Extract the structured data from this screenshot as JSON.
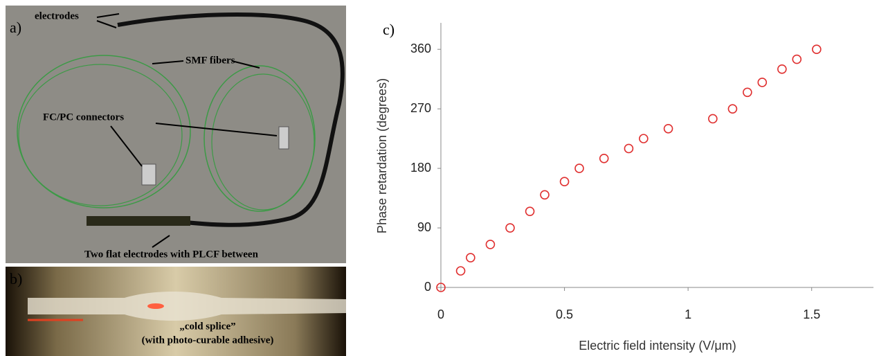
{
  "photo_a": {
    "panel_label": "a)",
    "labels": [
      "electrodes",
      "SMF fibers",
      "FC/PC connectors",
      "Two flat electrodes with PLCF between"
    ]
  },
  "photo_b": {
    "panel_label": "b)",
    "labels": [
      "„cold splice”",
      "(with photo-curable adhesive)"
    ]
  },
  "chart_data": {
    "type": "scatter",
    "panel_label": "c)",
    "x_label": "Electric field intensity (V/μm)",
    "y_label": "Phase retardation (degrees)",
    "x": [
      0,
      0.08,
      0.12,
      0.2,
      0.28,
      0.36,
      0.42,
      0.5,
      0.56,
      0.66,
      0.76,
      0.82,
      0.92,
      1.1,
      1.18,
      1.24,
      1.3,
      1.38,
      1.44,
      1.52
    ],
    "values": [
      0,
      25,
      45,
      65,
      90,
      115,
      140,
      160,
      180,
      195,
      210,
      225,
      240,
      255,
      270,
      295,
      310,
      330,
      345,
      360
    ],
    "color": "#e03030",
    "xlim": [
      0,
      1.75
    ],
    "xticks": [
      0,
      0.5,
      1,
      1.5
    ],
    "ylim": [
      0,
      400
    ],
    "yticks": [
      0,
      90,
      180,
      270,
      360
    ]
  }
}
